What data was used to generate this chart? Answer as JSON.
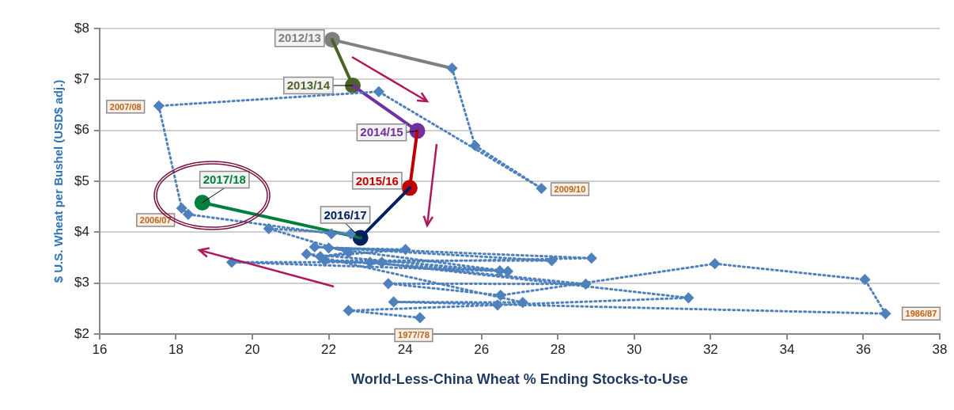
{
  "chart_data": {
    "type": "line",
    "xlabel": "World-Less-China Wheat % Ending Stocks-to-Use",
    "ylabel": "$ U.S. Wheat per Bushel (USD$ adj.)",
    "xlim": [
      16,
      38
    ],
    "xticks": [
      16,
      18,
      20,
      22,
      24,
      26,
      28,
      30,
      32,
      34,
      36,
      38
    ],
    "ylim": [
      2,
      8
    ],
    "yticks": [
      {
        "value": 2,
        "label": "$2"
      },
      {
        "value": 3,
        "label": "$3"
      },
      {
        "value": 4,
        "label": "$4"
      },
      {
        "value": 5,
        "label": "$5"
      },
      {
        "value": 6,
        "label": "$6"
      },
      {
        "value": 7,
        "label": "$7"
      },
      {
        "value": 8,
        "label": "$8"
      }
    ],
    "grid": "y",
    "legend": false,
    "series": [
      {
        "color": "#4f81bd",
        "marker": "diamond",
        "line_style": "dotted",
        "x": [
          24.39,
          22.52,
          26.42,
          31.42,
          23.08,
          28.73,
          23.56,
          26.5,
          32.11,
          36.04,
          36.58,
          23.7,
          27.08,
          21.42,
          26.48,
          21.9,
          27.84,
          21.63,
          28.88,
          23.39,
          19.46,
          26.69,
          22.0,
          24.01,
          21.78,
          22.52,
          20.43,
          22.58,
          22.07,
          18.32,
          18.15,
          17.55,
          23.31,
          27.57,
          25.83,
          25.23
        ],
        "values": [
          2.32,
          2.46,
          2.57,
          2.71,
          3.41,
          2.98,
          2.99,
          2.76,
          3.38,
          3.07,
          2.4,
          2.63,
          2.62,
          3.57,
          3.24,
          3.44,
          3.44,
          3.71,
          3.49,
          3.41,
          3.41,
          3.23,
          3.69,
          3.66,
          3.52,
          3.6,
          4.07,
          3.97,
          3.97,
          4.35,
          4.47,
          6.48,
          6.76,
          4.86,
          5.7,
          7.22
        ]
      },
      {
        "color": "#808080",
        "marker": "circle",
        "line_style": "solid",
        "x": [
          25.23,
          22.09
        ],
        "values": [
          7.22,
          7.78
        ]
      },
      {
        "color": "#4f6228",
        "marker": "circle",
        "line_style": "solid",
        "x": [
          22.09,
          22.63
        ],
        "values": [
          7.78,
          6.88
        ]
      },
      {
        "color": "#7030a0",
        "marker": "circle",
        "line_style": "solid",
        "x": [
          22.63,
          24.32
        ],
        "values": [
          6.88,
          5.99
        ]
      },
      {
        "color": "#c00000",
        "marker": "circle",
        "line_style": "solid",
        "x": [
          24.32,
          24.12
        ],
        "values": [
          5.99,
          4.87
        ]
      },
      {
        "color": "#002060",
        "marker": "circle",
        "line_style": "solid",
        "x": [
          24.12,
          22.83
        ],
        "values": [
          4.87,
          3.89
        ]
      },
      {
        "color": "#00803c",
        "marker": "circle",
        "line_style": "solid",
        "x": [
          22.83,
          18.69
        ],
        "values": [
          3.89,
          4.58
        ]
      }
    ],
    "annotations": [
      {
        "text": "2012/13",
        "x": 22.09,
        "y": 7.78
      },
      {
        "text": "2013/14",
        "x": 22.63,
        "y": 6.88
      },
      {
        "text": "2014/15",
        "x": 24.32,
        "y": 5.99
      },
      {
        "text": "2015/16",
        "x": 24.12,
        "y": 4.87
      },
      {
        "text": "2016/17",
        "x": 22.83,
        "y": 3.89
      },
      {
        "text": "2017/18",
        "x": 18.69,
        "y": 4.58
      },
      {
        "text": "2007/08",
        "x": 17.55,
        "y": 6.48
      },
      {
        "text": "2006/07",
        "x": 18.15,
        "y": 4.47
      },
      {
        "text": "2009/10",
        "x": 27.57,
        "y": 4.86
      },
      {
        "text": "1977/78",
        "x": 24.39,
        "y": 2.32
      },
      {
        "text": "1986/87",
        "x": 36.58,
        "y": 2.4
      }
    ]
  }
}
